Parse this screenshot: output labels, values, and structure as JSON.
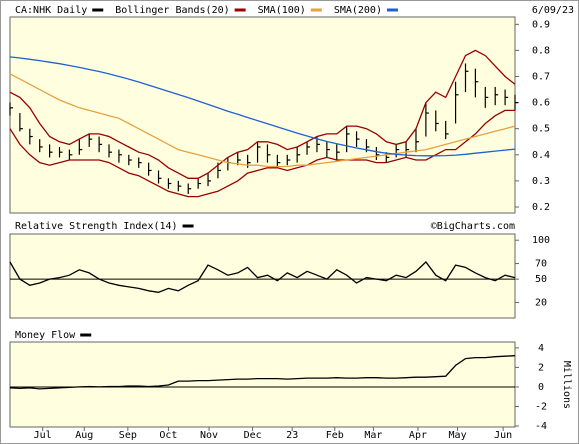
{
  "chart_data": [
    {
      "type": "stock",
      "title": "CA:NHK Daily",
      "date": "6/09/23",
      "x": [
        0,
        1,
        2,
        3,
        4,
        5,
        6,
        7,
        8,
        9,
        10,
        11,
        12,
        13,
        14,
        15,
        16,
        17,
        18,
        19,
        20,
        21,
        22,
        23,
        24,
        25,
        26,
        27,
        28,
        29,
        30,
        31,
        32,
        33,
        34,
        35,
        36,
        37,
        38,
        39,
        40,
        41,
        42,
        43,
        44,
        45,
        46,
        47,
        48,
        49,
        50,
        51
      ],
      "xlim": [
        0,
        51
      ],
      "ylim": [
        0.177,
        0.928
      ],
      "yticks": [
        0.2,
        0.3,
        0.4,
        0.5,
        0.6,
        0.7,
        0.8,
        0.9
      ],
      "series": [
        {
          "name": "CA:NHK Daily",
          "color": "#000000",
          "values": [
            0.58,
            0.5,
            0.47,
            0.43,
            0.41,
            0.41,
            0.4,
            0.42,
            0.46,
            0.44,
            0.41,
            0.4,
            0.38,
            0.37,
            0.34,
            0.31,
            0.29,
            0.28,
            0.27,
            0.29,
            0.3,
            0.34,
            0.37,
            0.38,
            0.37,
            0.43,
            0.4,
            0.37,
            0.38,
            0.4,
            0.43,
            0.44,
            0.42,
            0.41,
            0.48,
            0.46,
            0.43,
            0.4,
            0.39,
            0.42,
            0.42,
            0.45,
            0.56,
            0.52,
            0.48,
            0.63,
            0.72,
            0.68,
            0.62,
            0.63,
            0.62,
            0.6
          ],
          "high": [
            0.6,
            0.56,
            0.5,
            0.46,
            0.44,
            0.43,
            0.42,
            0.46,
            0.48,
            0.47,
            0.44,
            0.42,
            0.4,
            0.39,
            0.37,
            0.34,
            0.31,
            0.3,
            0.29,
            0.31,
            0.33,
            0.37,
            0.39,
            0.41,
            0.4,
            0.45,
            0.44,
            0.4,
            0.4,
            0.43,
            0.45,
            0.47,
            0.45,
            0.44,
            0.51,
            0.49,
            0.46,
            0.43,
            0.41,
            0.44,
            0.45,
            0.5,
            0.6,
            0.57,
            0.53,
            0.68,
            0.75,
            0.73,
            0.66,
            0.66,
            0.65,
            0.63
          ],
          "low": [
            0.55,
            0.49,
            0.44,
            0.41,
            0.39,
            0.39,
            0.38,
            0.4,
            0.43,
            0.41,
            0.39,
            0.37,
            0.36,
            0.35,
            0.32,
            0.29,
            0.27,
            0.26,
            0.25,
            0.27,
            0.28,
            0.31,
            0.34,
            0.36,
            0.35,
            0.37,
            0.37,
            0.35,
            0.36,
            0.37,
            0.4,
            0.41,
            0.39,
            0.38,
            0.41,
            0.43,
            0.41,
            0.38,
            0.37,
            0.39,
            0.39,
            0.41,
            0.47,
            0.49,
            0.46,
            0.52,
            0.64,
            0.62,
            0.58,
            0.59,
            0.59,
            0.57
          ]
        },
        {
          "name": "Bollinger Bands(20)",
          "color": "#990000",
          "values": [
            0.64,
            0.62,
            0.58,
            0.52,
            0.47,
            0.45,
            0.44,
            0.46,
            0.48,
            0.48,
            0.47,
            0.45,
            0.43,
            0.41,
            0.4,
            0.38,
            0.35,
            0.33,
            0.31,
            0.31,
            0.33,
            0.36,
            0.39,
            0.41,
            0.42,
            0.45,
            0.45,
            0.44,
            0.42,
            0.43,
            0.45,
            0.47,
            0.48,
            0.48,
            0.51,
            0.51,
            0.5,
            0.48,
            0.45,
            0.44,
            0.45,
            0.5,
            0.6,
            0.64,
            0.62,
            0.7,
            0.78,
            0.8,
            0.78,
            0.74,
            0.7,
            0.67
          ],
          "lower": [
            0.5,
            0.44,
            0.4,
            0.37,
            0.36,
            0.37,
            0.38,
            0.38,
            0.38,
            0.38,
            0.37,
            0.35,
            0.33,
            0.32,
            0.3,
            0.28,
            0.26,
            0.25,
            0.24,
            0.24,
            0.25,
            0.26,
            0.28,
            0.3,
            0.33,
            0.34,
            0.35,
            0.35,
            0.34,
            0.35,
            0.36,
            0.38,
            0.39,
            0.38,
            0.38,
            0.38,
            0.38,
            0.37,
            0.37,
            0.38,
            0.39,
            0.38,
            0.38,
            0.4,
            0.42,
            0.42,
            0.45,
            0.48,
            0.52,
            0.55,
            0.57,
            0.57
          ]
        },
        {
          "name": "SMA(100)",
          "color": "#e8a040",
          "values": [
            0.71,
            0.69,
            0.67,
            0.65,
            0.63,
            0.61,
            0.595,
            0.58,
            0.57,
            0.56,
            0.55,
            0.54,
            0.52,
            0.5,
            0.48,
            0.46,
            0.44,
            0.42,
            0.41,
            0.4,
            0.39,
            0.38,
            0.37,
            0.365,
            0.36,
            0.36,
            0.355,
            0.355,
            0.355,
            0.36,
            0.36,
            0.365,
            0.37,
            0.375,
            0.38,
            0.385,
            0.39,
            0.395,
            0.4,
            0.405,
            0.41,
            0.415,
            0.42,
            0.43,
            0.44,
            0.45,
            0.46,
            0.47,
            0.48,
            0.49,
            0.5,
            0.51
          ]
        },
        {
          "name": "SMA(200)",
          "color": "#2060d0",
          "values": [
            0.775,
            0.771,
            0.766,
            0.761,
            0.755,
            0.749,
            0.742,
            0.735,
            0.727,
            0.719,
            0.71,
            0.7,
            0.69,
            0.679,
            0.667,
            0.655,
            0.643,
            0.631,
            0.619,
            0.606,
            0.593,
            0.58,
            0.567,
            0.555,
            0.543,
            0.531,
            0.519,
            0.507,
            0.495,
            0.483,
            0.472,
            0.461,
            0.451,
            0.442,
            0.434,
            0.426,
            0.419,
            0.412,
            0.406,
            0.402,
            0.399,
            0.397,
            0.396,
            0.396,
            0.397,
            0.399,
            0.402,
            0.406,
            0.41,
            0.414,
            0.418,
            0.422
          ]
        }
      ]
    },
    {
      "type": "line",
      "title": "Relative Strength Index(14)",
      "credit": "©BigCharts.com",
      "x": [
        0,
        1,
        2,
        3,
        4,
        5,
        6,
        7,
        8,
        9,
        10,
        11,
        12,
        13,
        14,
        15,
        16,
        17,
        18,
        19,
        20,
        21,
        22,
        23,
        24,
        25,
        26,
        27,
        28,
        29,
        30,
        31,
        32,
        33,
        34,
        35,
        36,
        37,
        38,
        39,
        40,
        41,
        42,
        43,
        44,
        45,
        46,
        47,
        48,
        49,
        50,
        51
      ],
      "xlim": [
        0,
        51
      ],
      "ylim": [
        0,
        108
      ],
      "yticks": [
        100,
        70,
        50,
        20
      ],
      "ref_line": 50,
      "series": [
        {
          "name": "Relative Strength Index(14)",
          "color": "#000000",
          "values": [
            72,
            50,
            42,
            45,
            50,
            52,
            55,
            62,
            58,
            50,
            45,
            42,
            40,
            38,
            35,
            33,
            38,
            35,
            42,
            48,
            68,
            62,
            55,
            58,
            65,
            52,
            55,
            48,
            58,
            52,
            60,
            55,
            50,
            62,
            55,
            45,
            52,
            50,
            48,
            55,
            52,
            60,
            72,
            55,
            48,
            68,
            65,
            58,
            52,
            48,
            55,
            52
          ]
        }
      ]
    },
    {
      "type": "line",
      "title": "Money Flow",
      "y_label": "Millions",
      "x": [
        0,
        1,
        2,
        3,
        4,
        5,
        6,
        7,
        8,
        9,
        10,
        11,
        12,
        13,
        14,
        15,
        16,
        17,
        18,
        19,
        20,
        21,
        22,
        23,
        24,
        25,
        26,
        27,
        28,
        29,
        30,
        31,
        32,
        33,
        34,
        35,
        36,
        37,
        38,
        39,
        40,
        41,
        42,
        43,
        44,
        45,
        46,
        47,
        48,
        49,
        50,
        51
      ],
      "xlim": [
        0,
        51
      ],
      "ylim": [
        -4.1,
        4.6
      ],
      "yticks": [
        4,
        2,
        0,
        -2,
        -4
      ],
      "ref_line": 0,
      "xticks": [
        {
          "value": 3.3,
          "label": "Jul"
        },
        {
          "value": 7.5,
          "label": "Aug"
        },
        {
          "value": 11.9,
          "label": "Sep"
        },
        {
          "value": 16,
          "label": "Oct"
        },
        {
          "value": 20.1,
          "label": "Nov"
        },
        {
          "value": 24.5,
          "label": "Dec"
        },
        {
          "value": 28.5,
          "label": "23"
        },
        {
          "value": 32.8,
          "label": "Feb"
        },
        {
          "value": 36.7,
          "label": "Mar"
        },
        {
          "value": 41.2,
          "label": "Apr"
        },
        {
          "value": 45.2,
          "label": "May"
        },
        {
          "value": 49.8,
          "label": "Jun"
        }
      ],
      "series": [
        {
          "name": "Money Flow",
          "color": "#000000",
          "values": [
            -0.1,
            -0.15,
            -0.1,
            -0.2,
            -0.15,
            -0.1,
            -0.05,
            0,
            0.05,
            0,
            0.05,
            0.05,
            0.1,
            0.1,
            0.05,
            0.1,
            0.2,
            0.6,
            0.6,
            0.65,
            0.65,
            0.7,
            0.75,
            0.8,
            0.8,
            0.85,
            0.85,
            0.85,
            0.8,
            0.85,
            0.9,
            0.9,
            0.9,
            0.95,
            0.9,
            0.9,
            0.95,
            0.95,
            0.9,
            0.9,
            0.95,
            1.0,
            1.0,
            1.05,
            1.1,
            2.2,
            2.9,
            3.0,
            3.0,
            3.1,
            3.15,
            3.2
          ]
        }
      ]
    }
  ]
}
